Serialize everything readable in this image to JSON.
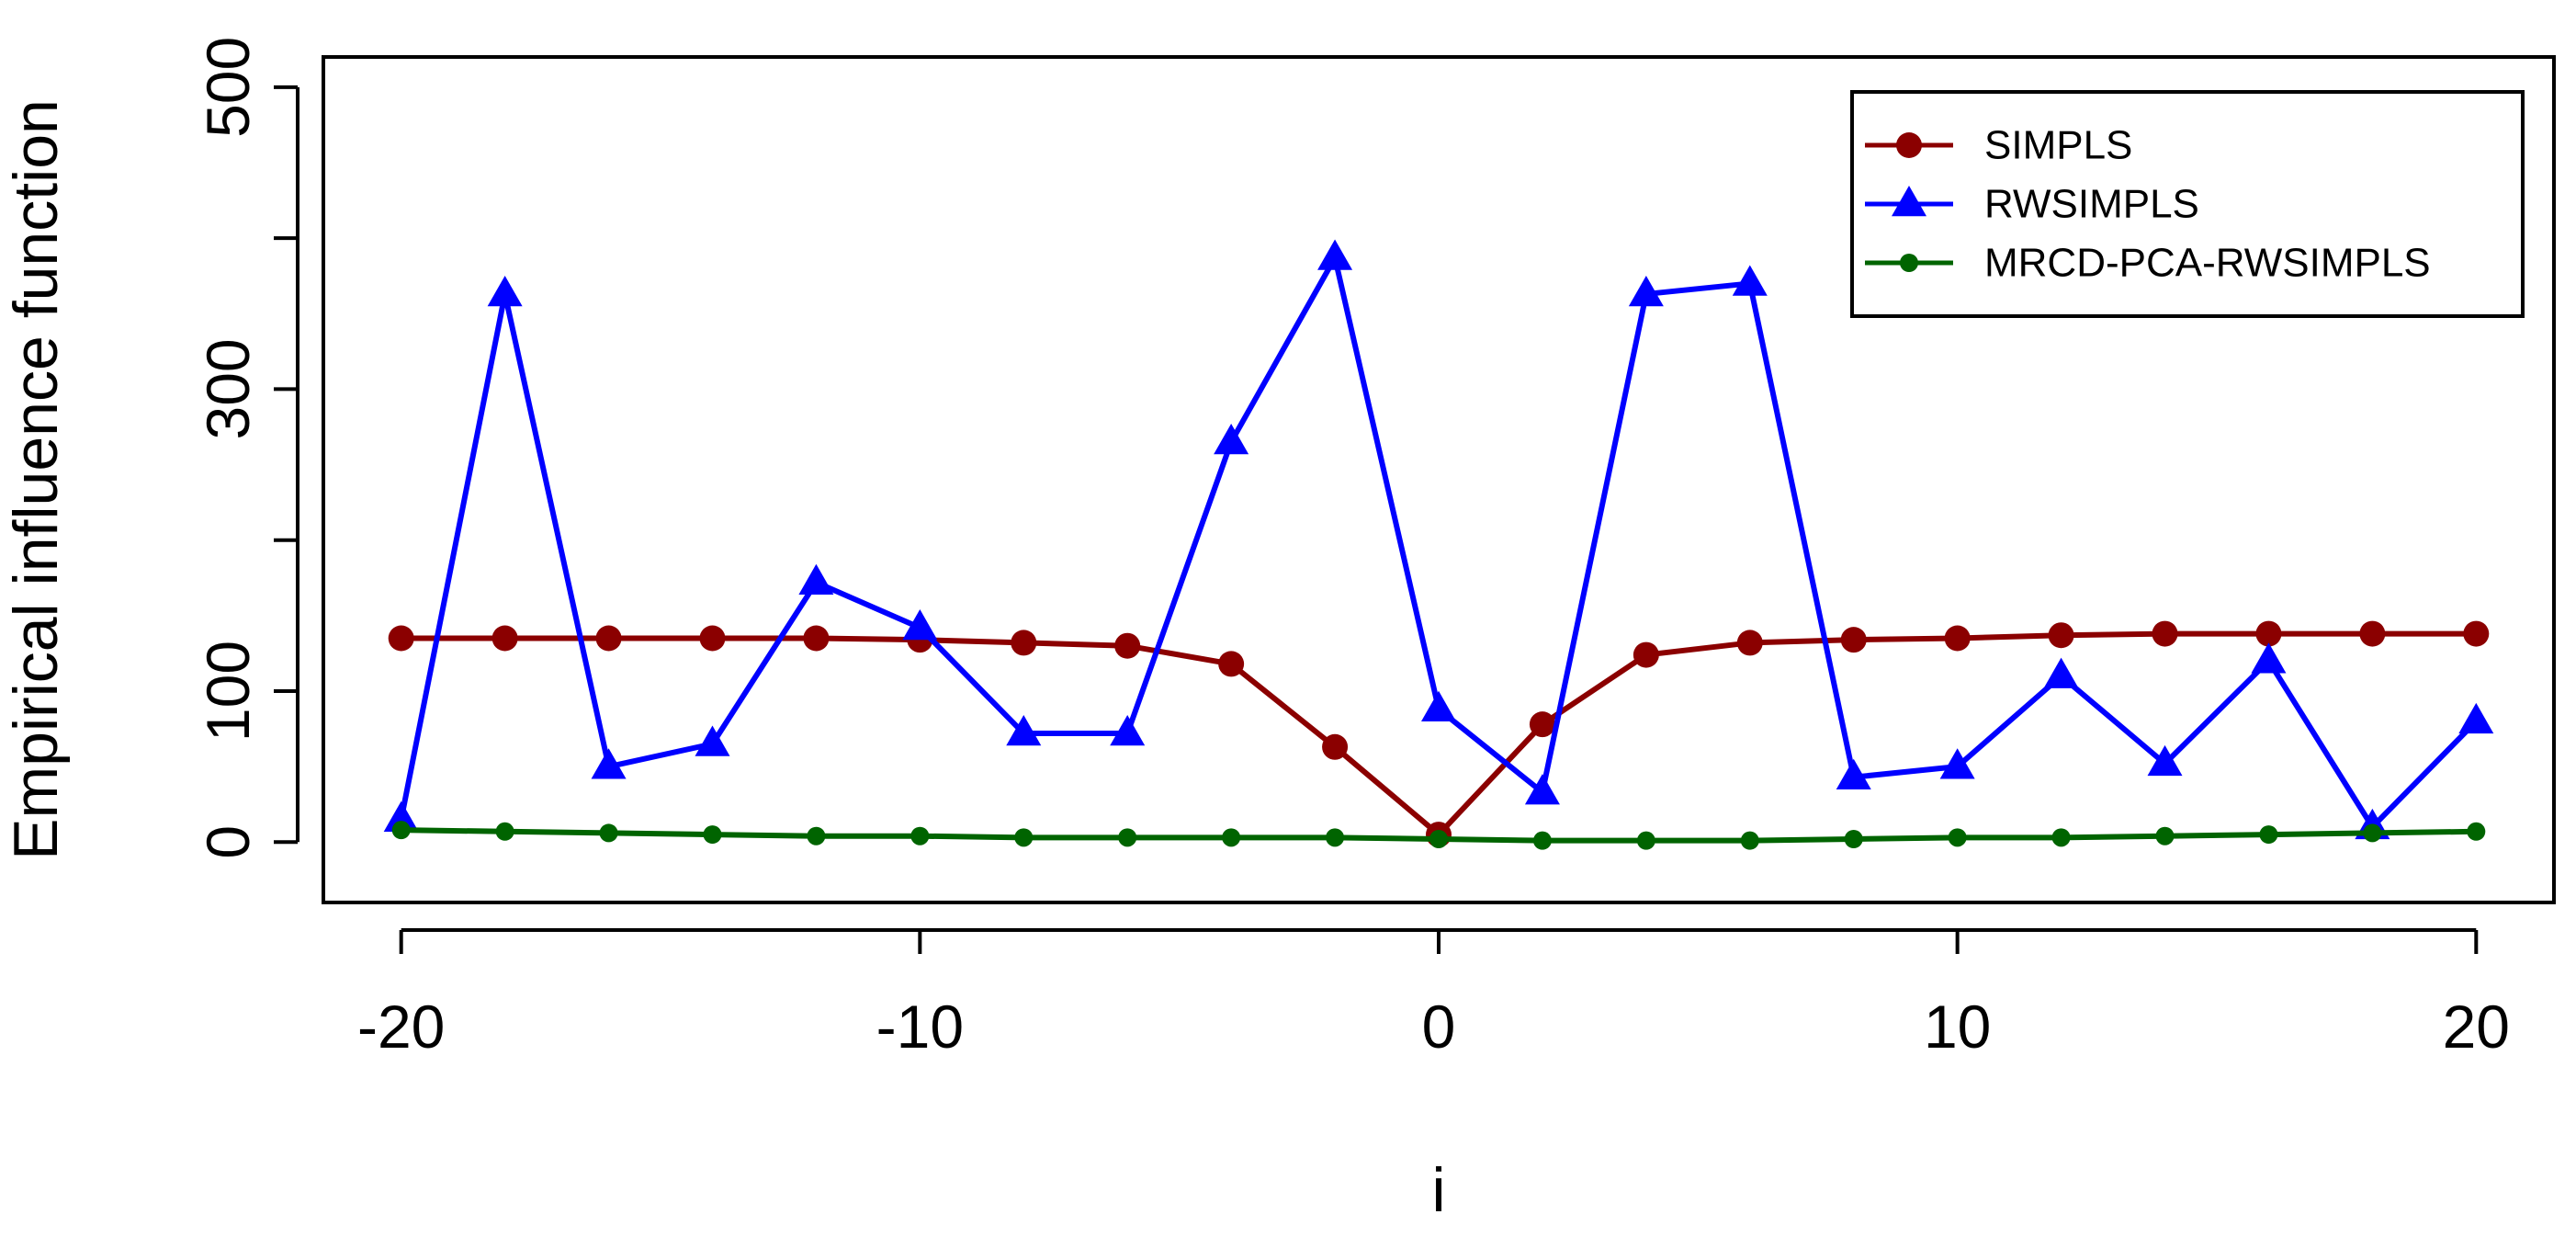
{
  "chart_data": {
    "type": "line",
    "xlabel": "i",
    "ylabel": "Empirical influence function",
    "xlim": [
      -21.5,
      21.5
    ],
    "ylim": [
      -40,
      520
    ],
    "x_ticks": [
      -20,
      -10,
      0,
      10,
      20
    ],
    "x_tick_labels": [
      "-20",
      "-10",
      "0",
      "10",
      "20"
    ],
    "y_ticks": [
      0,
      100,
      200,
      300,
      400,
      500
    ],
    "y_tick_labels": [
      "0",
      "100",
      "",
      "300",
      "",
      "500"
    ],
    "grid": false,
    "legend_position": "top-right",
    "x": [
      -20,
      -18,
      -16,
      -14,
      -12,
      -10,
      -8,
      -6,
      -4,
      -2,
      0,
      2,
      4,
      6,
      8,
      10,
      12,
      14,
      16,
      18,
      20
    ],
    "series": [
      {
        "name": "SIMPLS",
        "color": "#8b0000",
        "marker": "circle",
        "values": [
          135,
          135,
          135,
          135,
          135,
          134,
          132,
          130,
          118,
          63,
          5,
          78,
          124,
          132,
          134,
          135,
          137,
          138,
          138,
          138,
          138
        ]
      },
      {
        "name": "RWSIMPLS",
        "color": "#0000ff",
        "marker": "triangle",
        "values": [
          15,
          363,
          50,
          65,
          172,
          142,
          72,
          72,
          265,
          387,
          88,
          33,
          363,
          370,
          43,
          50,
          110,
          52,
          120,
          10,
          80
        ]
      },
      {
        "name": "MRCD-PCA-RWSIMPLS",
        "color": "#006400",
        "marker": "dot",
        "values": [
          8,
          7,
          6,
          5,
          4,
          4,
          3,
          3,
          3,
          3,
          2,
          1,
          1,
          1,
          2,
          3,
          3,
          4,
          5,
          6,
          7
        ]
      }
    ]
  }
}
